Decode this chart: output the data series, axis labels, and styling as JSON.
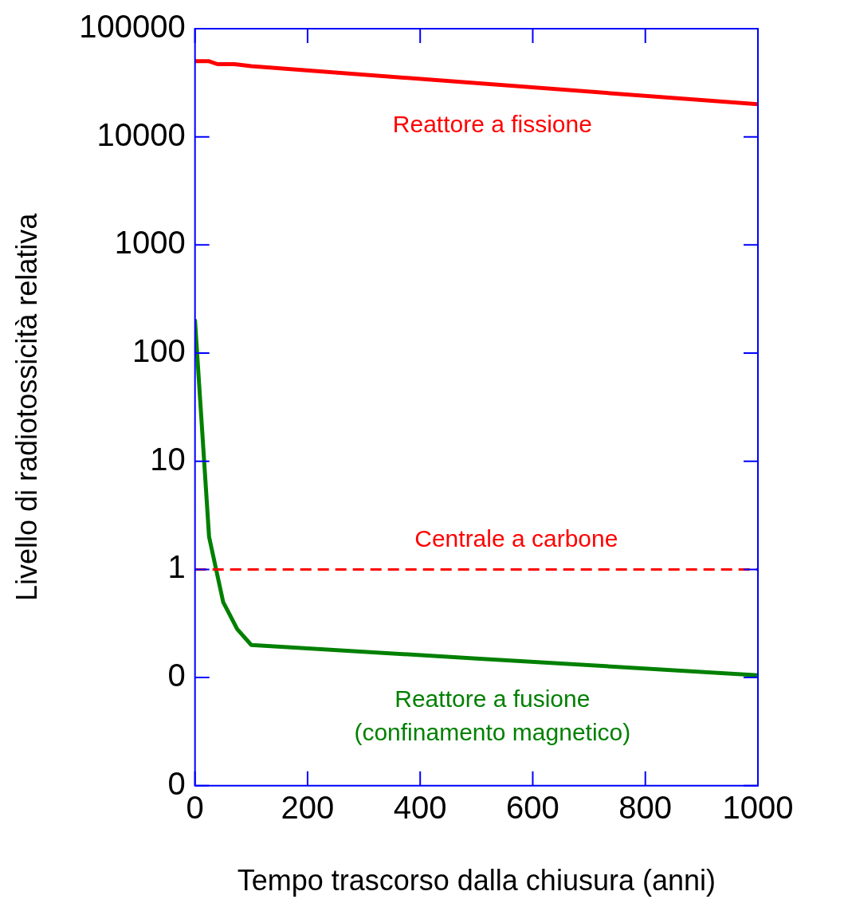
{
  "chart_data": {
    "type": "line",
    "xlabel": "Tempo trascorso dalla chiusura (anni)",
    "ylabel": "Livello di radiotossicità relativa",
    "log": "y",
    "grid": false,
    "legend": false,
    "marker": "none",
    "xlim": [
      0,
      1000
    ],
    "xticks": [
      0,
      200,
      400,
      600,
      800,
      1000
    ],
    "ylim": [
      0.01,
      100000
    ],
    "yticks": [
      {
        "value": 0.01,
        "label": "0"
      },
      {
        "value": 0.1,
        "label": "0"
      },
      1,
      10,
      100,
      1000,
      10000,
      100000
    ],
    "series": [
      {
        "name": "Reattore a fissione",
        "color": "#ff0000",
        "line_style": "solid",
        "x": [
          0,
          25,
          40,
          70,
          100,
          1000
        ],
        "values": [
          50000,
          50000,
          47000,
          47000,
          45000,
          20000
        ]
      },
      {
        "name": "Reattore a fusione\n(confinamento magnetico)",
        "color": "#008000",
        "line_style": "solid",
        "x": [
          0,
          25,
          50,
          75,
          100,
          500,
          1000
        ],
        "values": [
          200,
          2,
          0.5,
          0.28,
          0.2,
          0.15,
          0.105
        ]
      }
    ],
    "ref_lines": [
      {
        "axis": "y",
        "value": 1,
        "label": "Centrale a carbone",
        "color": "#ff0000",
        "line_style": "dashed"
      }
    ]
  }
}
